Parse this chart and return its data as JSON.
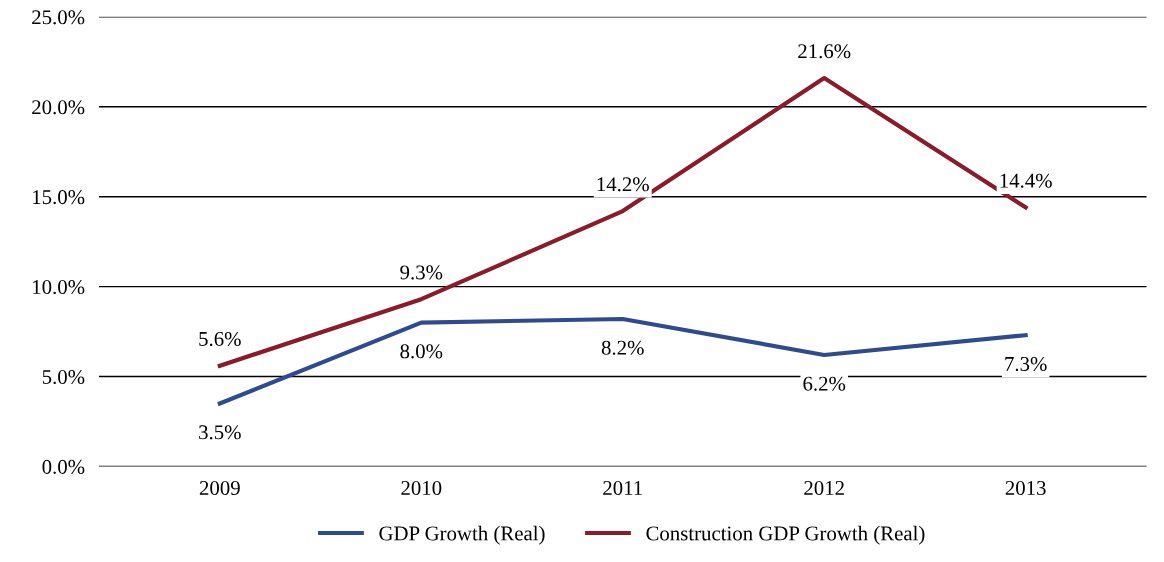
{
  "chart_data": {
    "type": "line",
    "categories": [
      "2009",
      "2010",
      "2011",
      "2012",
      "2013"
    ],
    "series": [
      {
        "name": "GDP Growth (Real)",
        "color": "#2f4b8f",
        "values": [
          3.5,
          8.0,
          8.2,
          6.2,
          7.3
        ],
        "value_labels": [
          "3.5%",
          "8.0%",
          "8.2%",
          "6.2%",
          "7.3%"
        ]
      },
      {
        "name": "Construction GDP Growth (Real)",
        "color": "#8b1a2b",
        "values": [
          5.6,
          9.3,
          14.2,
          21.6,
          14.4
        ],
        "value_labels": [
          "5.6%",
          "9.3%",
          "14.2%",
          "21.6%",
          "14.4%"
        ]
      }
    ],
    "ylim": [
      0,
      25
    ],
    "yticks": [
      {
        "value": 0,
        "label": "0.0%"
      },
      {
        "value": 5,
        "label": "5.0%"
      },
      {
        "value": 10,
        "label": "10.0%"
      },
      {
        "value": 15,
        "label": "15.0%"
      },
      {
        "value": 20,
        "label": "20.0%"
      },
      {
        "value": 25,
        "label": "25.0%"
      }
    ],
    "grid": "y",
    "legend": "bottom",
    "marker": "none",
    "line_style": "solid"
  }
}
